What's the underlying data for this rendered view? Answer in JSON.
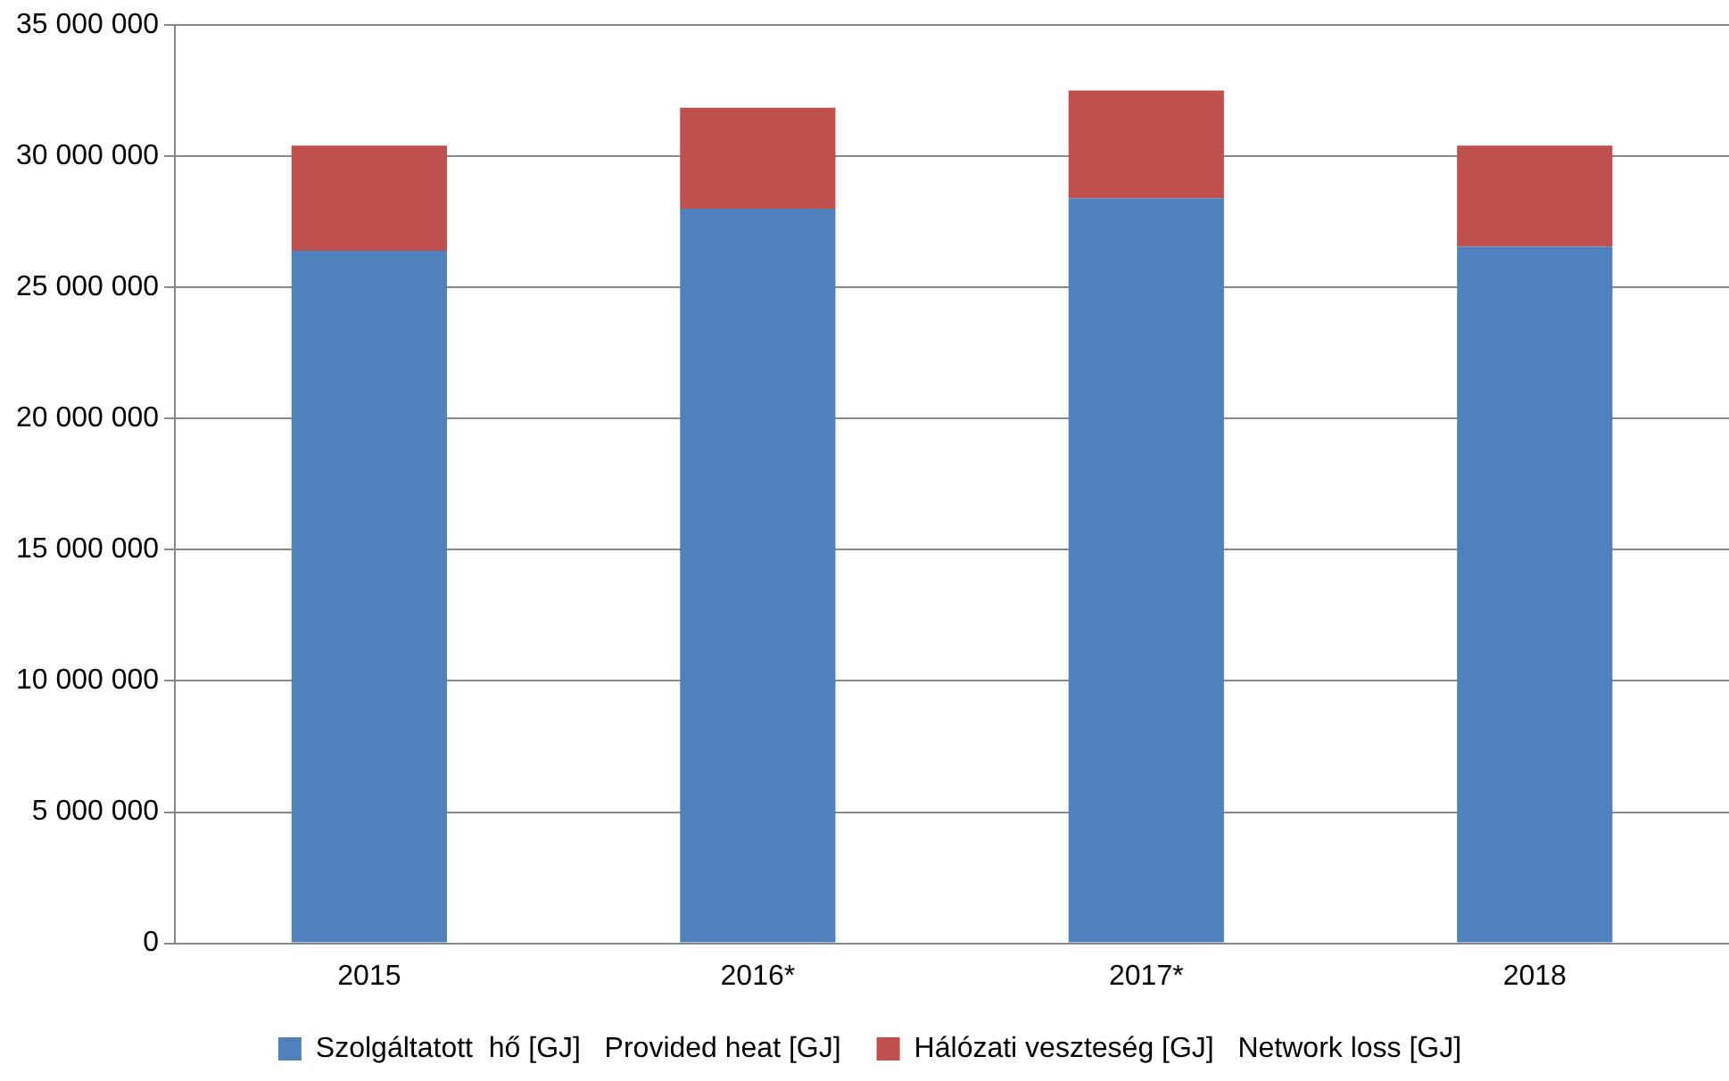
{
  "chart_data": {
    "type": "bar",
    "stacked": true,
    "categories": [
      "2015",
      "2016*",
      "2017*",
      "2018"
    ],
    "series": [
      {
        "name": "Szolgáltatott  hő [GJ]   Provided heat [GJ]",
        "color": "#4f81bd",
        "values": [
          26400000,
          28000000,
          28400000,
          26550000
        ]
      },
      {
        "name": "Hálózati veszteség [GJ]   Network loss [GJ]",
        "color": "#c0504d",
        "values": [
          4000000,
          3850000,
          4100000,
          3850000
        ]
      }
    ],
    "ylim": [
      0,
      35000000
    ],
    "yticks": [
      {
        "value": 0,
        "label": "0"
      },
      {
        "value": 5000000,
        "label": "5 000 000"
      },
      {
        "value": 10000000,
        "label": "10 000 000"
      },
      {
        "value": 15000000,
        "label": "15 000 000"
      },
      {
        "value": 20000000,
        "label": "20 000 000"
      },
      {
        "value": 25000000,
        "label": "25 000 000"
      },
      {
        "value": 30000000,
        "label": "30 000 000"
      },
      {
        "value": 35000000,
        "label": "35 000 000"
      }
    ],
    "grid": "y",
    "legend": "bottom"
  }
}
